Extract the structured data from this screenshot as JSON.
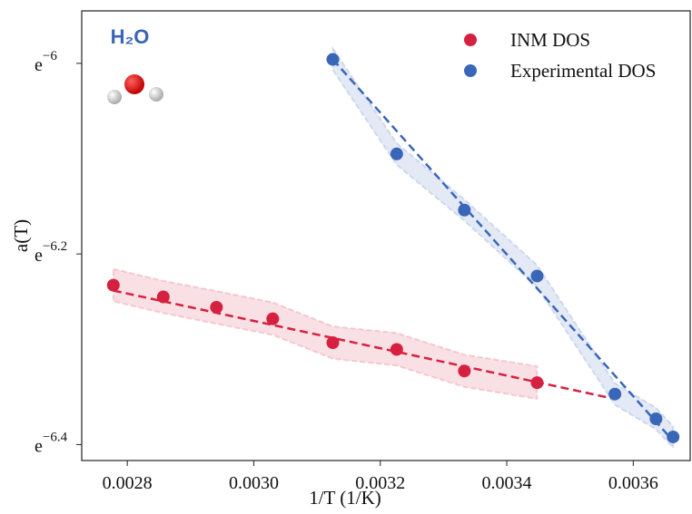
{
  "chart_data": {
    "type": "scatter",
    "annotation": "H₂O",
    "xlabel": "1/T (1/K)",
    "ylabel": "a(T)",
    "yscale": "log",
    "xlim": [
      0.002728,
      0.00369
    ],
    "ylim": [
      0.001634,
      0.002619
    ],
    "xticks": [
      0.0028,
      {
        "value": 0.003,
        "label": "0.0030"
      },
      0.0032,
      0.0034,
      0.0036
    ],
    "yticks": [
      {
        "value": 0.002478752,
        "label": "e−6"
      },
      {
        "value": 0.002029431,
        "label": "e−6.2"
      },
      {
        "value": 0.001661557,
        "label": "e−6.4"
      }
    ],
    "legend": "upper right",
    "series": [
      {
        "name": "INM DOS",
        "color": "#d62040",
        "x": [
          0.002778,
          0.002857,
          0.002941,
          0.00303,
          0.003125,
          0.003226,
          0.003333,
          0.003448
        ],
        "values": [
          0.001964,
          0.00194,
          0.001919,
          0.001896,
          0.001849,
          0.001836,
          0.001795,
          0.001773
        ],
        "upper": [
          0.001998,
          0.001973,
          0.001952,
          0.001929,
          0.001881,
          0.001868,
          0.001826,
          0.001804
        ],
        "lower": [
          0.001931,
          0.001907,
          0.001886,
          0.001864,
          0.001818,
          0.001805,
          0.001765,
          0.001743
        ],
        "fit_x": [
          0.002778,
          0.003571
        ],
        "fit": [
          0.001953,
          0.001743
        ]
      },
      {
        "name": "Experimental DOS",
        "color": "#3a66b8",
        "x": [
          0.003125,
          0.003226,
          0.003333,
          0.003448,
          0.003571,
          0.003636,
          0.003663
        ],
        "values": [
          0.002489,
          0.002254,
          0.002125,
          0.001983,
          0.001752,
          0.001707,
          0.001675
        ],
        "upper": [
          0.002518,
          0.00228,
          0.002149,
          0.002006,
          0.001772,
          0.001727,
          0.001694
        ],
        "lower": [
          0.002461,
          0.002228,
          0.002101,
          0.00196,
          0.001732,
          0.001688,
          0.001656
        ],
        "fit_x": [
          0.003125,
          0.003663
        ],
        "fit": [
          0.002489,
          0.001668
        ]
      }
    ]
  }
}
